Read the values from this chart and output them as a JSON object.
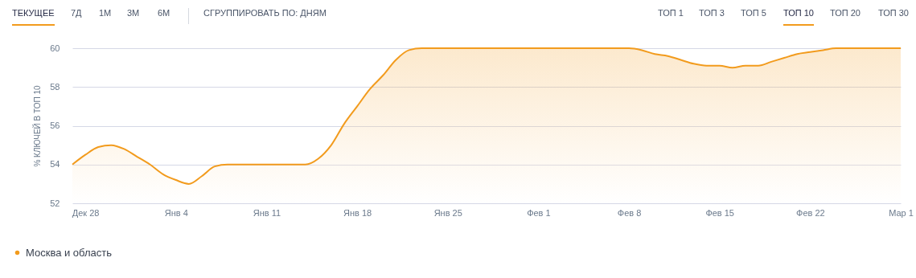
{
  "chart_data": {
    "type": "area",
    "ylabel": "% КЛЮЧЕЙ В ТОП 10",
    "annotations": [
      "ТЕКУЩЕЕ",
      "7Д",
      "1М",
      "3М",
      "6М",
      "СГРУППИРОВАТЬ ПО: ДНЯМ",
      "ТОП 1",
      "ТОП 3",
      "ТОП 5",
      "ТОП 10",
      "ТОП 20",
      "ТОП 30"
    ],
    "categories": [
      null,
      "Дек 28",
      null,
      null,
      null,
      null,
      null,
      null,
      "Янв 4",
      null,
      null,
      null,
      null,
      null,
      null,
      "Янв 11",
      null,
      null,
      null,
      null,
      null,
      null,
      "Янв 18",
      null,
      null,
      null,
      null,
      null,
      null,
      "Янв 25",
      null,
      null,
      null,
      null,
      null,
      null,
      "Фев 1",
      null,
      null,
      null,
      null,
      null,
      null,
      "Фев 8",
      null,
      null,
      null,
      null,
      null,
      null,
      "Фев 15",
      null,
      null,
      null,
      null,
      null,
      null,
      "Фев 22",
      null,
      null,
      null,
      null,
      null,
      null,
      "Мар 1"
    ],
    "series": [
      {
        "name": "Москва и область",
        "color": "#f29b1d",
        "values": [
          54,
          54.5,
          54.9,
          55,
          54.8,
          54.4,
          54,
          53.5,
          53.2,
          53,
          53.4,
          53.9,
          54,
          54,
          54,
          54,
          54,
          54,
          54,
          54.3,
          55,
          56.1,
          57,
          57.9,
          58.6,
          59.4,
          59.9,
          60,
          60,
          60,
          60,
          60,
          60,
          60,
          60,
          60,
          60,
          60,
          60,
          60,
          60,
          60,
          60,
          60,
          59.9,
          59.7,
          59.6,
          59.4,
          59.2,
          59.1,
          59.1,
          59,
          59.1,
          59.1,
          59.3,
          59.5,
          59.7,
          59.8,
          59.9,
          60,
          60,
          60,
          60,
          60,
          60
        ]
      }
    ],
    "ylim": [
      52,
      60
    ],
    "yticks": [
      52,
      54,
      56,
      58,
      60
    ],
    "grid": "y",
    "legend": "bottom left",
    "marker": "none",
    "line_style": "solid"
  }
}
